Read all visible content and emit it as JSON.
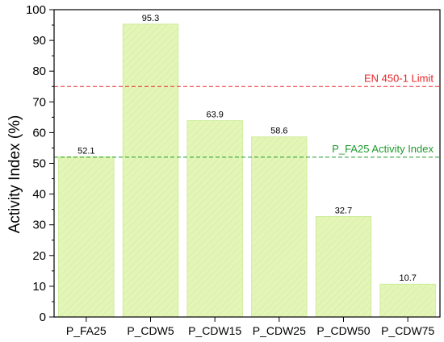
{
  "chart_data": {
    "type": "bar",
    "title": "",
    "xlabel": "",
    "ylabel": "Activity Index (%)",
    "ylim": [
      0,
      100
    ],
    "yticks": [
      0,
      10,
      20,
      30,
      40,
      50,
      60,
      70,
      80,
      90,
      100
    ],
    "categories": [
      "P_FA25",
      "P_CDW5",
      "P_CDW15",
      "P_CDW25",
      "P_CDW50",
      "P_CDW75"
    ],
    "values": [
      52.1,
      95.3,
      63.9,
      58.6,
      32.7,
      10.7
    ],
    "data_labels": [
      "52.1",
      "95.3",
      "63.9",
      "58.6",
      "32.7",
      "10.7"
    ],
    "bar_color": "#e3f5b7",
    "bar_edge_color": "#c6ea8c",
    "grid": false,
    "reference_lines": [
      {
        "label": "EN 450-1 Limit",
        "value": 75,
        "color": "#e8262a"
      },
      {
        "label": "P_FA25 Activity Index",
        "value": 52,
        "color": "#1f9a2c"
      }
    ]
  }
}
